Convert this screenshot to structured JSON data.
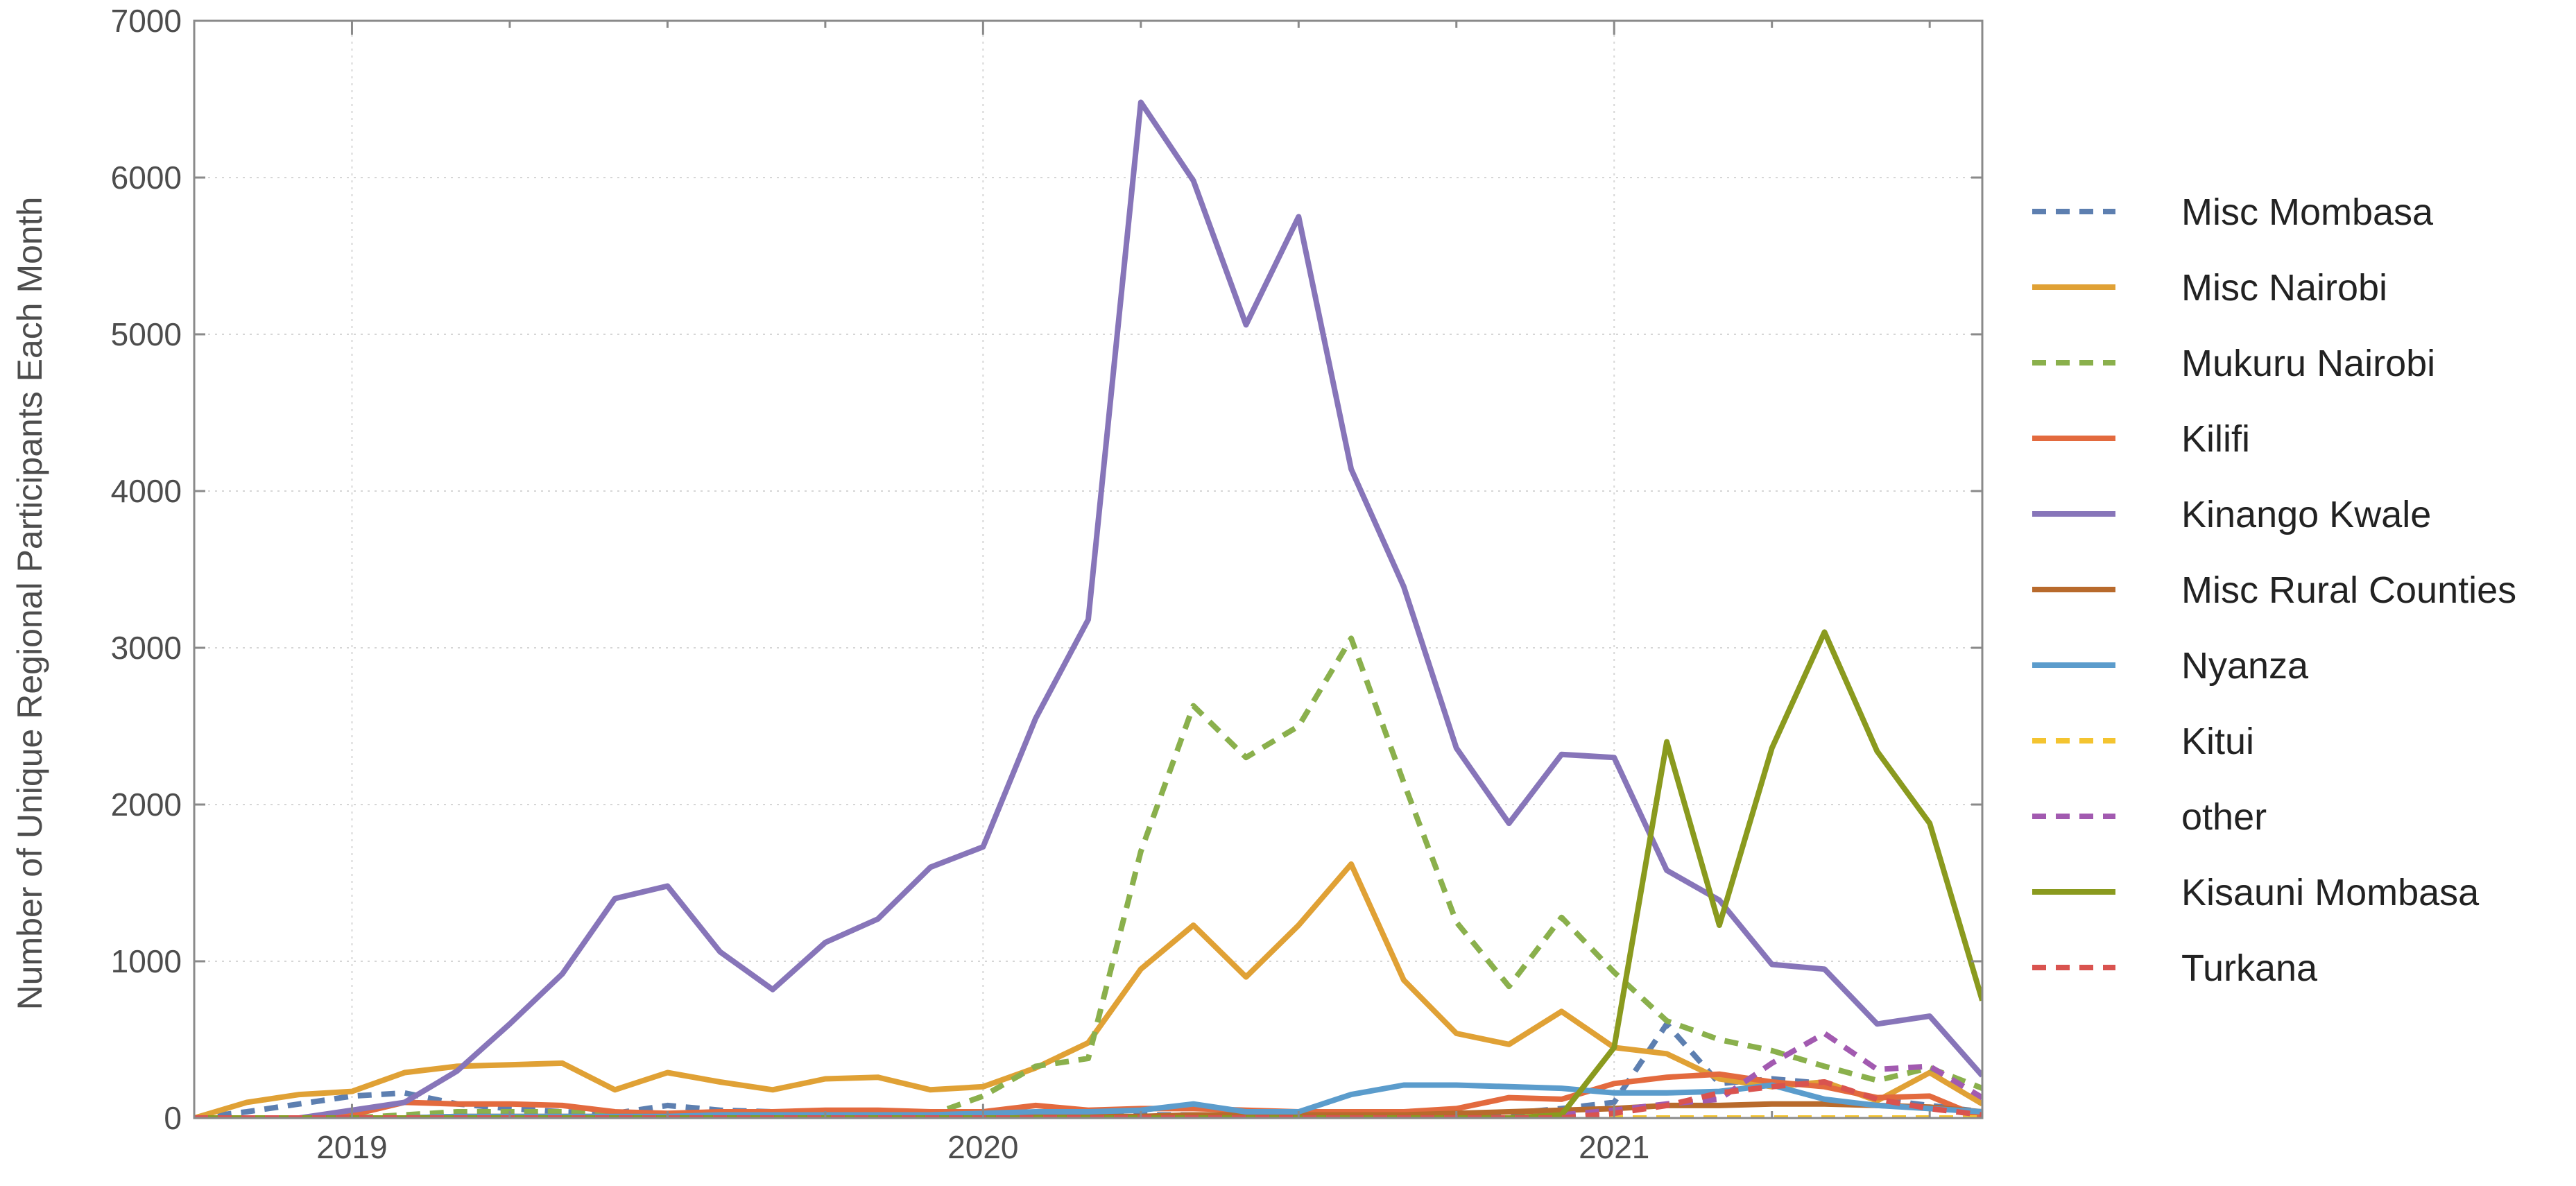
{
  "chart_data": {
    "type": "line",
    "title": "",
    "xlabel": "",
    "ylabel": "Number of Unique Regional Participants Each Month",
    "x": [
      "2018-10",
      "2018-11",
      "2018-12",
      "2019-01",
      "2019-02",
      "2019-03",
      "2019-04",
      "2019-05",
      "2019-06",
      "2019-07",
      "2019-08",
      "2019-09",
      "2019-10",
      "2019-11",
      "2019-12",
      "2020-01",
      "2020-02",
      "2020-03",
      "2020-04",
      "2020-05",
      "2020-06",
      "2020-07",
      "2020-08",
      "2020-09",
      "2020-10",
      "2020-11",
      "2020-12",
      "2021-01",
      "2021-02",
      "2021-03",
      "2021-04",
      "2021-05",
      "2021-06",
      "2021-07",
      "2021-08"
    ],
    "x_ticks": [
      "2019",
      "2020",
      "2021"
    ],
    "xlim": [
      "2018-10",
      "2021-08"
    ],
    "ylim": [
      0,
      7000
    ],
    "y_ticks": [
      0,
      1000,
      2000,
      3000,
      4000,
      5000,
      6000,
      7000
    ],
    "grid": true,
    "legend_position": "right",
    "series": [
      {
        "name": "Misc Mombasa",
        "color": "#5d7fb0",
        "dashed": true,
        "values": [
          0,
          40,
          90,
          140,
          160,
          90,
          60,
          40,
          30,
          80,
          50,
          40,
          30,
          20,
          20,
          30,
          20,
          20,
          20,
          20,
          20,
          20,
          20,
          30,
          30,
          30,
          60,
          100,
          600,
          220,
          250,
          220,
          120,
          80,
          40
        ]
      },
      {
        "name": "Misc Nairobi",
        "color": "#e0a135",
        "dashed": false,
        "values": [
          0,
          100,
          150,
          170,
          290,
          330,
          340,
          350,
          180,
          290,
          230,
          180,
          250,
          260,
          180,
          200,
          320,
          480,
          950,
          1230,
          900,
          1230,
          1620,
          880,
          540,
          470,
          680,
          450,
          410,
          250,
          200,
          230,
          110,
          290,
          90
        ]
      },
      {
        "name": "Mukuru Nairobi",
        "color": "#8ab04c",
        "dashed": true,
        "values": [
          0,
          0,
          0,
          0,
          20,
          40,
          40,
          40,
          30,
          20,
          10,
          10,
          10,
          10,
          20,
          140,
          330,
          380,
          1700,
          2630,
          2300,
          2500,
          3060,
          2140,
          1250,
          840,
          1280,
          930,
          620,
          500,
          430,
          330,
          240,
          320,
          190
        ]
      },
      {
        "name": "Kilifi",
        "color": "#e36a3e",
        "dashed": false,
        "values": [
          0,
          0,
          0,
          20,
          100,
          90,
          90,
          80,
          40,
          30,
          40,
          40,
          50,
          50,
          40,
          40,
          80,
          50,
          60,
          60,
          50,
          40,
          40,
          40,
          60,
          130,
          120,
          220,
          260,
          280,
          230,
          200,
          130,
          140,
          0
        ]
      },
      {
        "name": "Kinango Kwale",
        "color": "#8775b9",
        "dashed": false,
        "values": [
          0,
          0,
          0,
          50,
          100,
          300,
          600,
          920,
          1400,
          1480,
          1060,
          820,
          1120,
          1270,
          1600,
          1730,
          2550,
          3180,
          6480,
          5980,
          5060,
          5750,
          4140,
          3390,
          2360,
          1880,
          2320,
          2300,
          1580,
          1390,
          980,
          950,
          600,
          650,
          270
        ]
      },
      {
        "name": "Misc Rural Counties",
        "color": "#b86a2c",
        "dashed": false,
        "values": [
          0,
          0,
          0,
          0,
          0,
          10,
          10,
          10,
          10,
          10,
          10,
          10,
          10,
          10,
          10,
          10,
          10,
          10,
          10,
          20,
          20,
          20,
          20,
          20,
          30,
          40,
          50,
          60,
          80,
          80,
          90,
          90,
          80,
          70,
          40
        ]
      },
      {
        "name": "Nyanza",
        "color": "#5b9ccc",
        "dashed": false,
        "values": [
          0,
          0,
          0,
          0,
          0,
          10,
          10,
          10,
          10,
          10,
          20,
          20,
          20,
          20,
          20,
          30,
          40,
          40,
          50,
          90,
          40,
          40,
          150,
          210,
          210,
          200,
          190,
          160,
          160,
          170,
          210,
          120,
          80,
          60,
          40
        ]
      },
      {
        "name": "Kitui",
        "color": "#f4c430",
        "dashed": true,
        "values": [
          0,
          0,
          0,
          0,
          0,
          0,
          0,
          0,
          0,
          0,
          0,
          0,
          0,
          0,
          0,
          0,
          0,
          0,
          0,
          0,
          0,
          0,
          0,
          0,
          0,
          0,
          0,
          0,
          0,
          0,
          0,
          0,
          0,
          0,
          0
        ]
      },
      {
        "name": "other",
        "color": "#a25ab0",
        "dashed": true,
        "values": [
          0,
          0,
          0,
          0,
          0,
          0,
          0,
          0,
          0,
          0,
          0,
          0,
          0,
          0,
          0,
          0,
          0,
          0,
          0,
          0,
          0,
          0,
          0,
          0,
          0,
          0,
          20,
          50,
          90,
          120,
          350,
          540,
          310,
          330,
          130
        ]
      },
      {
        "name": "Kisauni Mombasa",
        "color": "#8a9a1e",
        "dashed": false,
        "values": [
          0,
          0,
          0,
          0,
          0,
          0,
          0,
          0,
          0,
          0,
          0,
          0,
          0,
          0,
          0,
          0,
          0,
          0,
          0,
          0,
          0,
          0,
          0,
          0,
          0,
          0,
          20,
          450,
          2400,
          1230,
          2360,
          3100,
          2340,
          1880,
          750
        ]
      },
      {
        "name": "Turkana",
        "color": "#d9534f",
        "dashed": true,
        "values": [
          0,
          0,
          0,
          0,
          0,
          0,
          0,
          0,
          0,
          0,
          0,
          0,
          0,
          0,
          0,
          0,
          0,
          0,
          0,
          0,
          0,
          0,
          0,
          0,
          0,
          0,
          0,
          30,
          80,
          160,
          200,
          230,
          120,
          60,
          20
        ]
      }
    ]
  }
}
